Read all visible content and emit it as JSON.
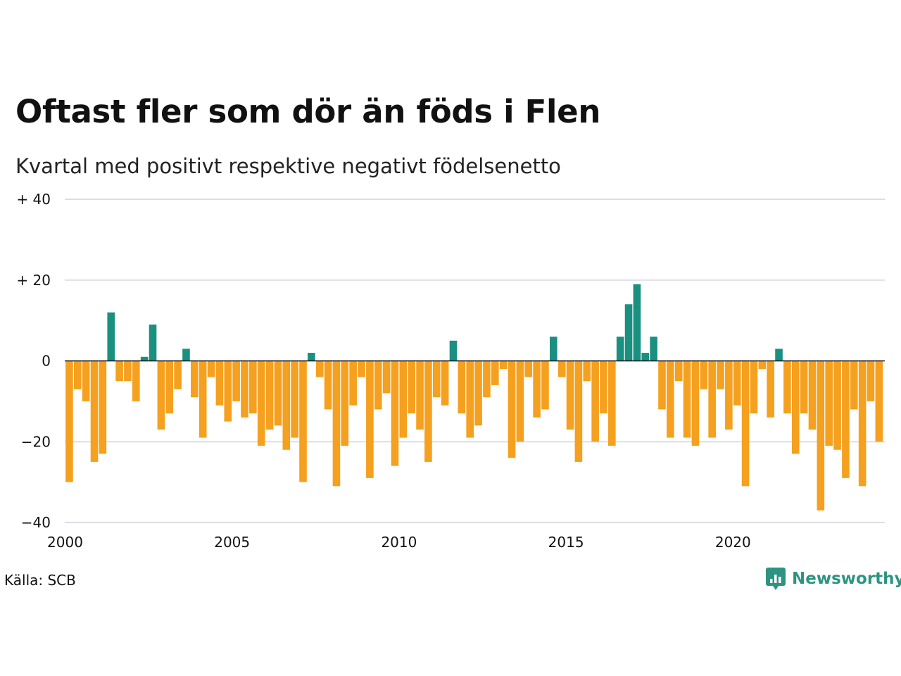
{
  "title": "Oftast fler som dör än föds i Flen",
  "subtitle": "Kvartal med positivt respektive negativt födelsenetto",
  "source": "Källa: SCB",
  "logo": {
    "text": "Newsworthy",
    "icon": "newsworthy-chart-bubble-icon"
  },
  "colors": {
    "positive": "#1a9080",
    "negative": "#f5a01e",
    "grid": "#dddde6",
    "zero_line": "#111111"
  },
  "chart_data": {
    "type": "bar",
    "title": "Oftast fler som dör än föds i Flen",
    "subtitle": "Kvartal med positivt respektive negativt födelsenetto",
    "start_year": 2000,
    "frequency": "quarterly",
    "ylim": [
      -40,
      40
    ],
    "y_ticks": [
      {
        "value": 40,
        "label": "+ 40"
      },
      {
        "value": 20,
        "label": "+ 20"
      },
      {
        "value": 0,
        "label": "0"
      },
      {
        "value": -20,
        "label": "−20"
      },
      {
        "value": -40,
        "label": "−40"
      }
    ],
    "x_ticks": [
      {
        "year": 2000,
        "label": "2000"
      },
      {
        "year": 2005,
        "label": "2005"
      },
      {
        "year": 2010,
        "label": "2010"
      },
      {
        "year": 2015,
        "label": "2015"
      },
      {
        "year": 2020,
        "label": "2020"
      }
    ],
    "grid": true,
    "values": [
      -30,
      -7,
      -10,
      -25,
      -23,
      12,
      -5,
      -5,
      -10,
      1,
      9,
      -17,
      -13,
      -7,
      3,
      -9,
      -19,
      -4,
      -11,
      -15,
      -10,
      -14,
      -13,
      -21,
      -17,
      -16,
      -22,
      -19,
      -30,
      2,
      -4,
      -12,
      -31,
      -21,
      -11,
      -4,
      -29,
      -12,
      -8,
      -26,
      -19,
      -13,
      -17,
      -25,
      -9,
      -11,
      5,
      -13,
      -19,
      -16,
      -9,
      -6,
      -2,
      -24,
      -20,
      -4,
      -14,
      -12,
      6,
      -4,
      -17,
      -25,
      -5,
      -20,
      -13,
      -21,
      6,
      14,
      19,
      2,
      6,
      -12,
      -19,
      -5,
      -19,
      -21,
      -7,
      -19,
      -7,
      -17,
      -11,
      -31,
      -13,
      -2,
      -14,
      3,
      -13,
      -23,
      -13,
      -17,
      -37,
      -21,
      -22,
      -29,
      -12,
      -31,
      -10,
      -20
    ]
  }
}
